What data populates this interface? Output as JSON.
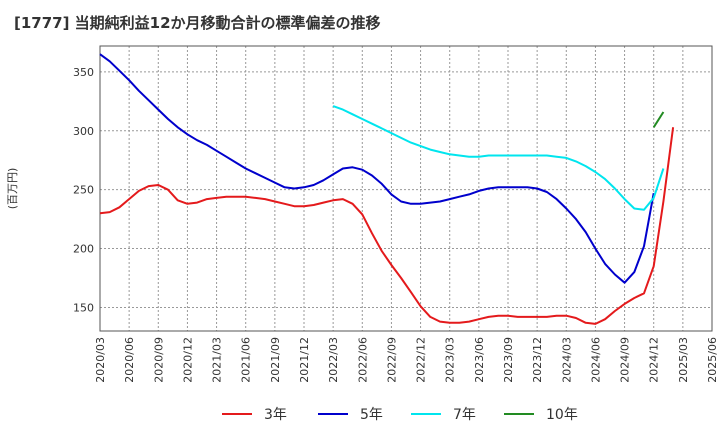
{
  "chart_data": {
    "type": "line",
    "title": "[1777]  当期純利益12か月移動合計の標準偏差の推移",
    "xlabel": "",
    "ylabel": "(百万円)",
    "ylim": [
      130,
      372
    ],
    "yticks": [
      150,
      200,
      250,
      300,
      350
    ],
    "xticks": [
      "2020/03",
      "2020/06",
      "2020/09",
      "2020/12",
      "2021/03",
      "2021/06",
      "2021/09",
      "2021/12",
      "2022/03",
      "2022/06",
      "2022/09",
      "2022/12",
      "2023/03",
      "2023/06",
      "2023/09",
      "2023/12",
      "2024/03",
      "2024/06",
      "2024/09",
      "2024/12",
      "2025/03",
      "2025/06"
    ],
    "grid": true,
    "legend_position": "bottom",
    "series": [
      {
        "name": "3年",
        "color": "#e41a1c",
        "start_index": 0,
        "values": [
          230,
          231,
          235,
          242,
          249,
          253,
          254,
          250,
          241,
          238,
          239,
          242,
          243,
          244,
          244,
          244,
          243,
          242,
          240,
          238,
          236,
          236,
          237,
          239,
          241,
          242,
          238,
          229,
          213,
          198,
          186,
          175,
          163,
          151,
          142,
          138,
          137,
          137,
          138,
          140,
          142,
          143,
          143,
          142,
          142,
          142,
          142,
          143,
          143,
          141,
          137,
          136,
          140,
          147,
          153,
          158,
          162,
          185,
          240,
          303
        ]
      },
      {
        "name": "5年",
        "color": "#0000cc",
        "start_index": 0,
        "values": [
          365,
          359,
          351,
          343,
          334,
          326,
          318,
          310,
          303,
          297,
          292,
          288,
          283,
          278,
          273,
          268,
          264,
          260,
          256,
          252,
          251,
          252,
          254,
          258,
          263,
          268,
          269,
          267,
          262,
          255,
          246,
          240,
          238,
          238,
          239,
          240,
          242,
          244,
          246,
          249,
          251,
          252,
          252,
          252,
          252,
          251,
          248,
          242,
          234,
          225,
          214,
          200,
          187,
          178,
          171,
          180,
          202,
          247
        ]
      },
      {
        "name": "7年",
        "color": "#00e5ee",
        "start_index": 24,
        "values": [
          321,
          318,
          314,
          310,
          306,
          302,
          298,
          294,
          290,
          287,
          284,
          282,
          280,
          279,
          278,
          278,
          279,
          279,
          279,
          279,
          279,
          279,
          279,
          278,
          277,
          274,
          270,
          265,
          259,
          251,
          242,
          234,
          233,
          243,
          268
        ]
      },
      {
        "name": "10年",
        "color": "#228b22",
        "start_index": 57,
        "values": [
          303,
          316
        ]
      }
    ]
  }
}
